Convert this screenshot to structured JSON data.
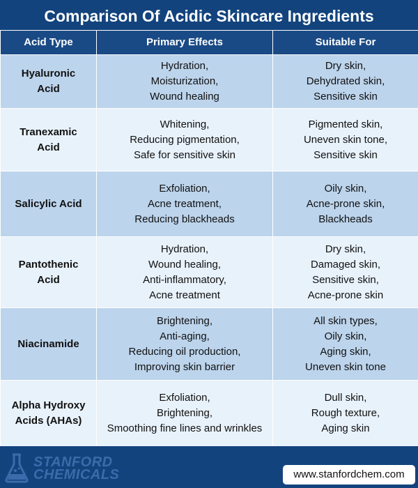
{
  "title": "Comparison Of Acidic Skincare Ingredients",
  "headers": [
    "Acid Type",
    "Primary Effects",
    "Suitable For"
  ],
  "rows": [
    {
      "acid": [
        "Hyaluronic",
        "Acid"
      ],
      "effects": [
        "Hydration,",
        "Moisturization,",
        "Wound healing"
      ],
      "suitable": [
        "Dry skin,",
        "Dehydrated skin,",
        "Sensitive skin"
      ]
    },
    {
      "acid": [
        "Tranexamic",
        "Acid"
      ],
      "effects": [
        "Whitening,",
        "Reducing pigmentation,",
        "Safe for sensitive skin"
      ],
      "suitable": [
        "Pigmented skin,",
        "Uneven skin tone,",
        "Sensitive skin"
      ]
    },
    {
      "acid": [
        "Salicylic Acid"
      ],
      "effects": [
        "Exfoliation,",
        "Acne treatment,",
        "Reducing blackheads"
      ],
      "suitable": [
        "Oily skin,",
        "Acne-prone skin,",
        "Blackheads"
      ]
    },
    {
      "acid": [
        "Pantothenic",
        "Acid"
      ],
      "effects": [
        "Hydration,",
        "Wound healing,",
        "Anti-inflammatory,",
        "Acne treatment"
      ],
      "suitable": [
        "Dry skin,",
        "Damaged skin,",
        "Sensitive skin,",
        "Acne-prone skin"
      ]
    },
    {
      "acid": [
        "Niacinamide"
      ],
      "effects": [
        "Brightening,",
        "Anti-aging,",
        "Reducing oil production,",
        "Improving skin barrier"
      ],
      "suitable": [
        "All skin types,",
        "Oily skin,",
        "Aging skin,",
        "Uneven skin tone"
      ]
    },
    {
      "acid": [
        "Alpha Hydroxy",
        "Acids (AHAs)"
      ],
      "effects": [
        "Exfoliation,",
        "Brightening,",
        "Smoothing fine lines and wrinkles"
      ],
      "suitable": [
        "Dull skin,",
        "Rough texture,",
        "Aging skin"
      ]
    }
  ],
  "footer": {
    "logo_line1": "STANFORD",
    "logo_line2": "CHEMICALS",
    "url": "www.stanfordchem.com",
    "logo_icon": "flask-icon"
  },
  "colors": {
    "header_bg": "#12437d",
    "row_odd": "#bcd4ec",
    "row_even": "#e8f2fb",
    "logo": "#3a6cab"
  }
}
